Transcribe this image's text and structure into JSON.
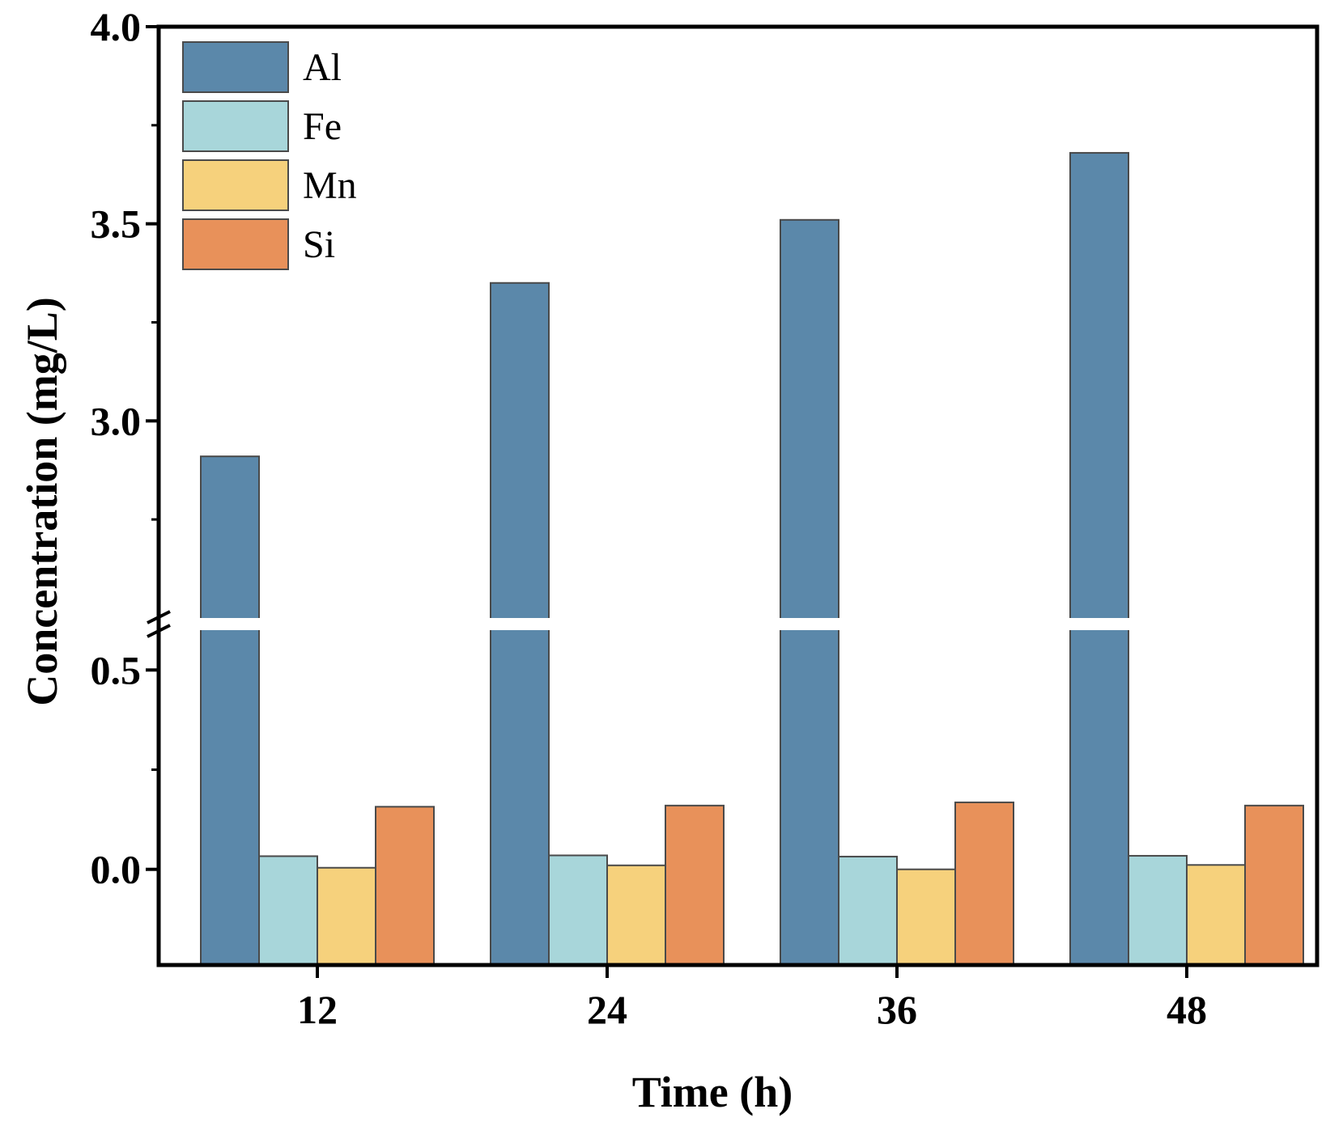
{
  "chart_data": {
    "type": "bar",
    "title": "",
    "xlabel": "Time (h)",
    "ylabel": "Concentration (mg/L)",
    "categories": [
      "12",
      "24",
      "36",
      "48"
    ],
    "series": [
      {
        "name": "Al",
        "values": [
          2.91,
          3.35,
          3.51,
          3.68
        ],
        "color": "#5B88AA"
      },
      {
        "name": "Fe",
        "values": [
          0.033,
          0.035,
          0.032,
          0.034
        ],
        "color": "#A8D6DA"
      },
      {
        "name": "Mn",
        "values": [
          0.004,
          0.01,
          0.0,
          0.011
        ],
        "color": "#F6D17C"
      },
      {
        "name": "Si",
        "values": [
          0.157,
          0.16,
          0.168,
          0.16
        ],
        "color": "#E8915A"
      }
    ],
    "ylim_lower": [
      -0.24,
      0.6
    ],
    "ylim_upper": [
      2.5,
      4.0
    ],
    "axis_break": true,
    "yticks_lower": [
      "0.0",
      "0.5"
    ],
    "yticks_upper": [
      "3.0",
      "3.5",
      "4.0"
    ],
    "legend_position": "top-left",
    "grid": false
  }
}
